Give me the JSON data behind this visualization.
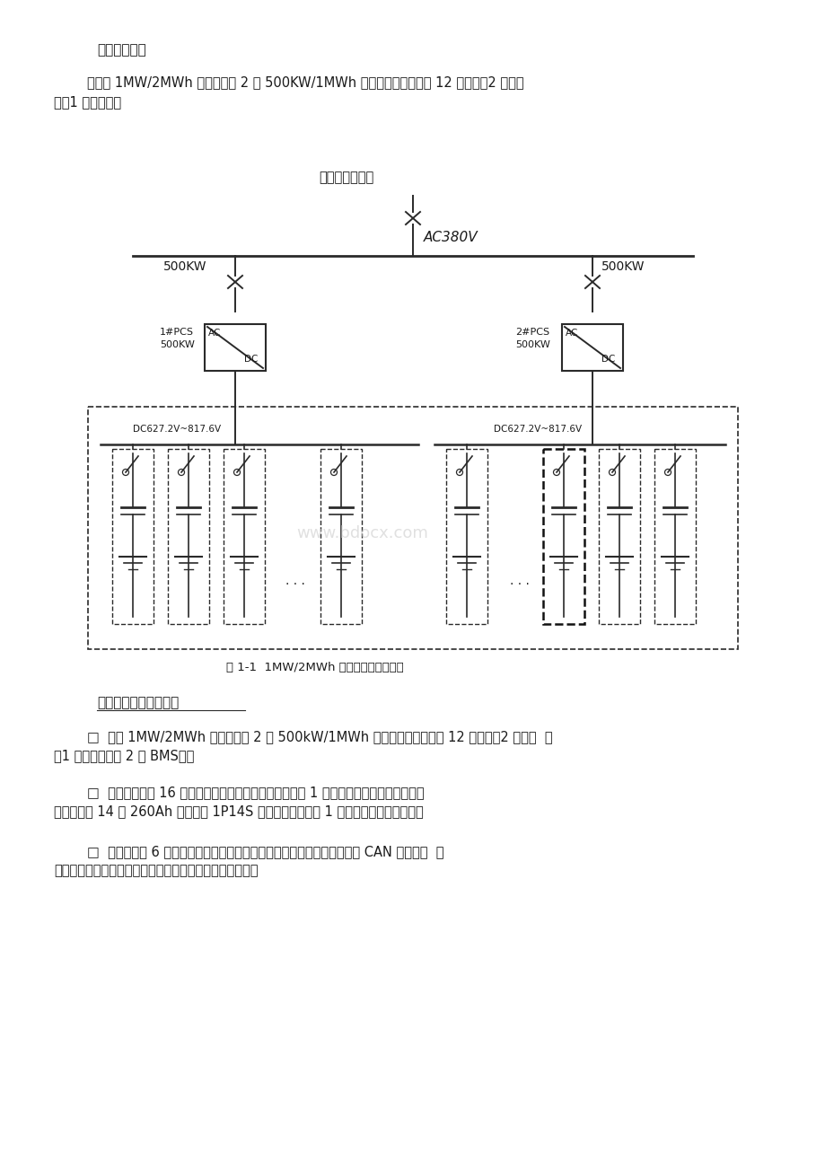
{
  "bg_color": "#ffffff",
  "text_color": "#1a1a1a",
  "line_color": "#2a2a2a",
  "title1": "储能系统构成",
  "para1_line1": "        本项目 1MW/2MWh 储能系统由 2 个 500KW/1MWh 储能单元组成，共计 12 个电柜、2 个汇流",
  "para1_line2": "柜、1 个控制柜。",
  "diagram_title": "系统总体架构图",
  "ac_label": "AC380V",
  "left_kw": "500KW",
  "right_kw": "500KW",
  "left_pcs_line1": "1#PCS",
  "left_pcs_line2": "500KW",
  "right_pcs_line1": "2#PCS",
  "right_pcs_line2": "500KW",
  "left_dc_bus": "DC627.2V~817.6V",
  "right_dc_bus": "DC627.2V~817.6V",
  "fig_caption": "图 1-1  1MW/2MWh 储能系统架构示意图",
  "section2_title": "电池储能系统构成描述",
  "bullet1_line1": "        □  每个 1MW/2MWh 储能系统由 2 个 500kW/1MWh 储能单元组成，共计 12 个电柜、2 个汇流  柜",
  "bullet1_line2": "、1 个控制柜（含 2 套 BMS）。",
  "bullet2_line1": "        □  每个电池柜由 16 个磷酸铁锂电池箱串联系统组成，由 1 套电池管理系统进行管理。每",
  "bullet2_line2": "个电池箱由 14 个 260Ah 电芯通过 1P14S 方式进行成组，由 1 个电池监测单元来管理。",
  "bullet3_line1": "        □  汇流柜汇集 6 个电池柜的高压到直流总线上。控制柜为每个电池柜提供 CAN 通信汇总  接",
  "bullet3_line2": "口，同时通过以太网向就地监控系统上传电池数据和信息。",
  "watermark": "www.bdocx.com"
}
